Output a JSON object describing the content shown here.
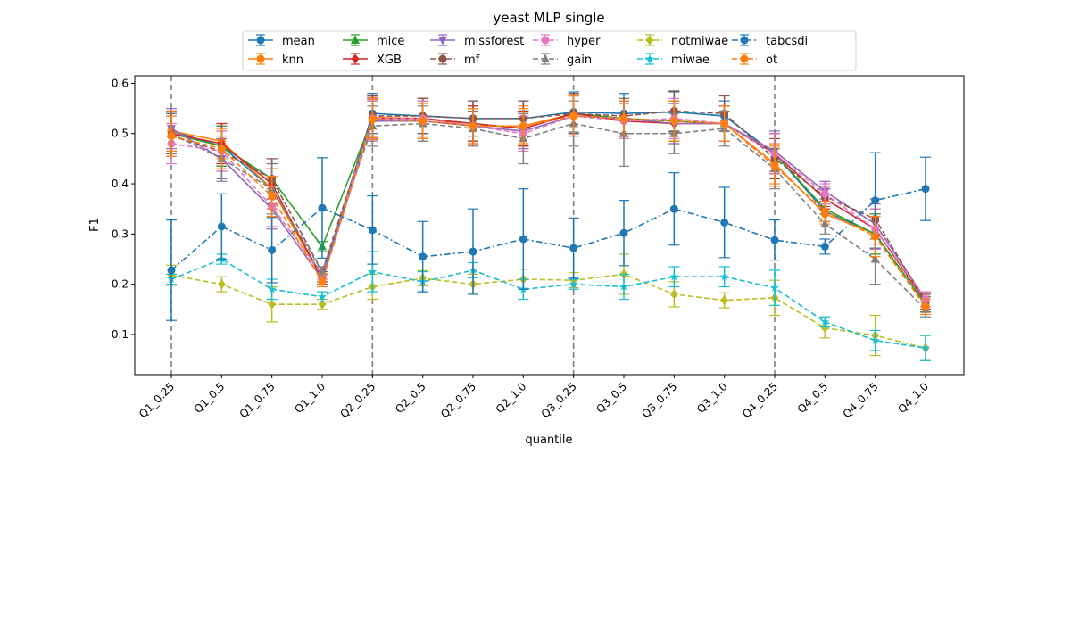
{
  "chart_data": {
    "type": "line",
    "title": "yeast MLP single",
    "xlabel": "quantile",
    "ylabel": "F1",
    "categories": [
      "Q1_0.25",
      "Q1_0.5",
      "Q1_0.75",
      "Q1_1.0",
      "Q2_0.25",
      "Q2_0.5",
      "Q2_0.75",
      "Q2_1.0",
      "Q3_0.25",
      "Q3_0.5",
      "Q3_0.75",
      "Q3_1.0",
      "Q4_0.25",
      "Q4_0.5",
      "Q4_0.75",
      "Q4_1.0"
    ],
    "yticks": [
      "0.1",
      "0.2",
      "0.3",
      "0.4",
      "0.5",
      "0.6"
    ],
    "ylim": [
      0.02,
      0.615
    ],
    "grid": false,
    "legend_position": "top-center",
    "vertical_dashed_lines_at": [
      "Q1_0.25",
      "Q2_0.25",
      "Q3_0.25",
      "Q4_0.25"
    ],
    "series": [
      {
        "name": "mean",
        "color": "#1f77b4",
        "marker": "circle",
        "dash": "solid",
        "values": [
          0.505,
          0.475,
          0.39,
          0.215,
          0.54,
          0.535,
          0.53,
          0.53,
          0.543,
          0.54,
          0.543,
          0.535,
          0.46,
          0.345,
          0.3,
          0.16
        ],
        "err": [
          0.04,
          0.04,
          0.04,
          0.01,
          0.04,
          0.035,
          0.035,
          0.035,
          0.04,
          0.04,
          0.04,
          0.03,
          0.04,
          0.02,
          0.04,
          0.015
        ]
      },
      {
        "name": "knn",
        "color": "#ff7f0e",
        "marker": "circle",
        "dash": "solid",
        "values": [
          0.505,
          0.485,
          0.39,
          0.21,
          0.532,
          0.53,
          0.515,
          0.515,
          0.54,
          0.53,
          0.525,
          0.52,
          0.44,
          0.34,
          0.3,
          0.16
        ],
        "err": [
          0.04,
          0.035,
          0.04,
          0.01,
          0.04,
          0.04,
          0.035,
          0.04,
          0.04,
          0.035,
          0.04,
          0.035,
          0.04,
          0.02,
          0.04,
          0.015
        ]
      },
      {
        "name": "mice",
        "color": "#2ca02c",
        "marker": "triangle",
        "dash": "solid",
        "values": [
          0.5,
          0.475,
          0.41,
          0.275,
          0.53,
          0.53,
          0.52,
          0.51,
          0.54,
          0.53,
          0.525,
          0.52,
          0.46,
          0.35,
          0.3,
          0.16
        ],
        "err": [
          0.04,
          0.04,
          0.04,
          0.01,
          0.04,
          0.035,
          0.035,
          0.035,
          0.04,
          0.035,
          0.04,
          0.035,
          0.04,
          0.02,
          0.04,
          0.015
        ]
      },
      {
        "name": "XGB",
        "color": "#d62728",
        "marker": "diamond",
        "dash": "solid",
        "values": [
          0.5,
          0.48,
          0.4,
          0.21,
          0.53,
          0.53,
          0.52,
          0.51,
          0.54,
          0.525,
          0.52,
          0.52,
          0.46,
          0.37,
          0.31,
          0.165
        ],
        "err": [
          0.04,
          0.04,
          0.04,
          0.01,
          0.04,
          0.04,
          0.035,
          0.035,
          0.04,
          0.035,
          0.04,
          0.035,
          0.04,
          0.02,
          0.04,
          0.015
        ]
      },
      {
        "name": "missforest",
        "color": "#9467bd",
        "marker": "tri-down",
        "dash": "solid",
        "values": [
          0.51,
          0.45,
          0.35,
          0.21,
          0.525,
          0.525,
          0.515,
          0.505,
          0.535,
          0.53,
          0.52,
          0.52,
          0.465,
          0.385,
          0.32,
          0.17
        ],
        "err": [
          0.04,
          0.04,
          0.04,
          0.01,
          0.04,
          0.04,
          0.035,
          0.035,
          0.04,
          0.035,
          0.04,
          0.035,
          0.04,
          0.02,
          0.04,
          0.015
        ]
      },
      {
        "name": "mf",
        "color": "#8c564b",
        "marker": "circle",
        "dash": "dashed",
        "values": [
          0.495,
          0.465,
          0.41,
          0.225,
          0.535,
          0.535,
          0.53,
          0.53,
          0.54,
          0.535,
          0.545,
          0.54,
          0.45,
          0.375,
          0.33,
          0.165
        ],
        "err": [
          0.04,
          0.04,
          0.04,
          0.01,
          0.04,
          0.035,
          0.035,
          0.035,
          0.04,
          0.035,
          0.04,
          0.035,
          0.04,
          0.02,
          0.04,
          0.015
        ]
      },
      {
        "name": "hyper",
        "color": "#e377c2",
        "marker": "circle",
        "dash": "dashed",
        "values": [
          0.48,
          0.465,
          0.355,
          0.22,
          0.53,
          0.53,
          0.515,
          0.5,
          0.535,
          0.525,
          0.53,
          0.52,
          0.46,
          0.38,
          0.31,
          0.17
        ],
        "err": [
          0.04,
          0.04,
          0.04,
          0.01,
          0.04,
          0.035,
          0.035,
          0.035,
          0.04,
          0.035,
          0.04,
          0.035,
          0.04,
          0.02,
          0.04,
          0.015
        ]
      },
      {
        "name": "gain",
        "color": "#7f7f7f",
        "marker": "triangle",
        "dash": "dashed",
        "values": [
          0.5,
          0.45,
          0.39,
          0.225,
          0.515,
          0.52,
          0.51,
          0.49,
          0.52,
          0.5,
          0.5,
          0.51,
          0.43,
          0.32,
          0.25,
          0.15
        ],
        "err": [
          0.04,
          0.045,
          0.05,
          0.01,
          0.04,
          0.035,
          0.035,
          0.05,
          0.045,
          0.065,
          0.04,
          0.035,
          0.04,
          0.02,
          0.05,
          0.015
        ]
      },
      {
        "name": "notmiwae",
        "color": "#bcbd22",
        "marker": "diamond",
        "dash": "dashed",
        "values": [
          0.218,
          0.2,
          0.16,
          0.16,
          0.195,
          0.212,
          0.2,
          0.21,
          0.208,
          0.22,
          0.18,
          0.168,
          0.173,
          0.113,
          0.098,
          0.073
        ],
        "err": [
          0.02,
          0.015,
          0.035,
          0.01,
          0.025,
          0.015,
          0.02,
          0.02,
          0.015,
          0.04,
          0.025,
          0.015,
          0.035,
          0.02,
          0.04,
          0.025
        ]
      },
      {
        "name": "miwae",
        "color": "#17becf",
        "marker": "star",
        "dash": "dashed",
        "values": [
          0.21,
          0.25,
          0.19,
          0.175,
          0.225,
          0.205,
          0.228,
          0.19,
          0.2,
          0.195,
          0.215,
          0.215,
          0.193,
          0.125,
          0.088,
          0.073
        ],
        "err": [
          0.01,
          0.01,
          0.02,
          0.01,
          0.04,
          0.02,
          0.015,
          0.02,
          0.01,
          0.025,
          0.02,
          0.02,
          0.035,
          0.01,
          0.02,
          0.025
        ]
      },
      {
        "name": "tabcsdi",
        "color": "#1f77b4",
        "marker": "circle",
        "dash": "dashdot",
        "values": [
          0.228,
          0.315,
          0.268,
          0.352,
          0.308,
          0.255,
          0.265,
          0.29,
          0.272,
          0.302,
          0.35,
          0.323,
          0.288,
          0.275,
          0.367,
          0.39
        ],
        "err": [
          0.1,
          0.065,
          0.065,
          0.1,
          0.068,
          0.07,
          0.085,
          0.1,
          0.06,
          0.065,
          0.072,
          0.07,
          0.04,
          0.015,
          0.095,
          0.063
        ]
      },
      {
        "name": "ot",
        "color": "#ff7f0e",
        "marker": "circle",
        "dash": "dashed",
        "values": [
          0.495,
          0.47,
          0.375,
          0.205,
          0.528,
          0.525,
          0.515,
          0.515,
          0.535,
          0.53,
          0.525,
          0.52,
          0.435,
          0.345,
          0.295,
          0.155
        ],
        "err": [
          0.04,
          0.04,
          0.04,
          0.01,
          0.04,
          0.035,
          0.035,
          0.035,
          0.04,
          0.035,
          0.04,
          0.035,
          0.04,
          0.02,
          0.04,
          0.015
        ]
      }
    ]
  }
}
